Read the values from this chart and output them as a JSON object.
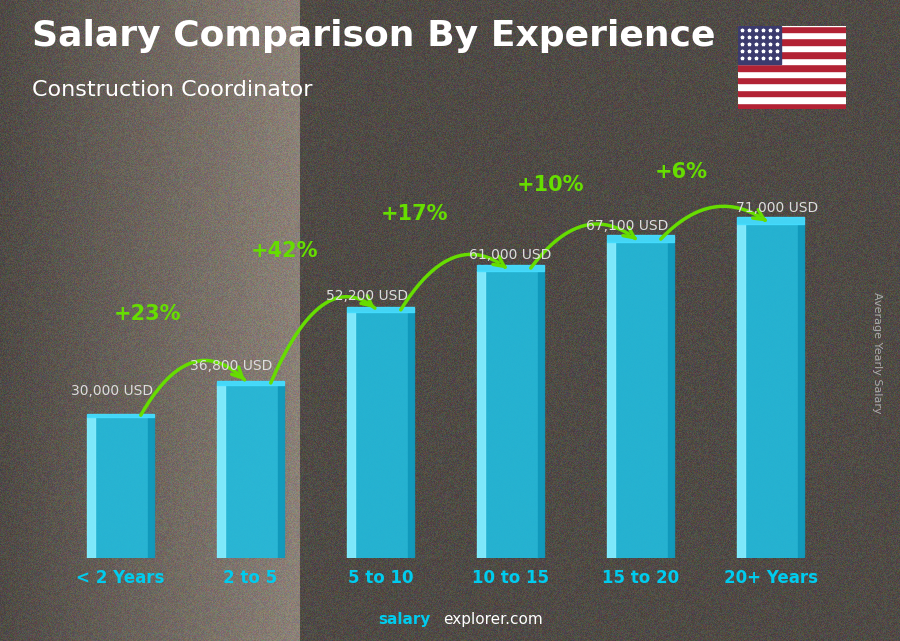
{
  "categories": [
    "< 2 Years",
    "2 to 5",
    "5 to 10",
    "10 to 15",
    "15 to 20",
    "20+ Years"
  ],
  "values": [
    30000,
    36800,
    52200,
    61000,
    67100,
    71000
  ],
  "value_labels": [
    "30,000 USD",
    "36,800 USD",
    "52,200 USD",
    "61,000 USD",
    "67,100 USD",
    "71,000 USD"
  ],
  "pct_changes": [
    "+23%",
    "+42%",
    "+17%",
    "+10%",
    "+6%"
  ],
  "title_line1": "Salary Comparison By Experience",
  "title_line2": "Construction Coordinator",
  "bar_width": 0.52,
  "bg_color": "#4a4a4a",
  "text_color_white": "#ffffff",
  "text_color_green": "#88ee00",
  "text_color_cyan": "#00ccee",
  "ylabel_text": "Average Yearly Salary",
  "footer_salary": "salary",
  "footer_explorer": "explorer",
  "footer_com": ".com",
  "ylim": [
    0,
    90000
  ],
  "arrow_color": "#66dd00",
  "bar_main_color": "#22bbdd",
  "bar_light_color": "#44ddff",
  "bar_dark_color": "#1199bb",
  "bar_highlight_color": "#88eeff",
  "value_label_color": "#dddddd",
  "xtick_color": "#00ccee",
  "title_fontsize": 26,
  "subtitle_fontsize": 16,
  "pct_fontsize": 15,
  "val_fontsize": 10,
  "xtick_fontsize": 12
}
